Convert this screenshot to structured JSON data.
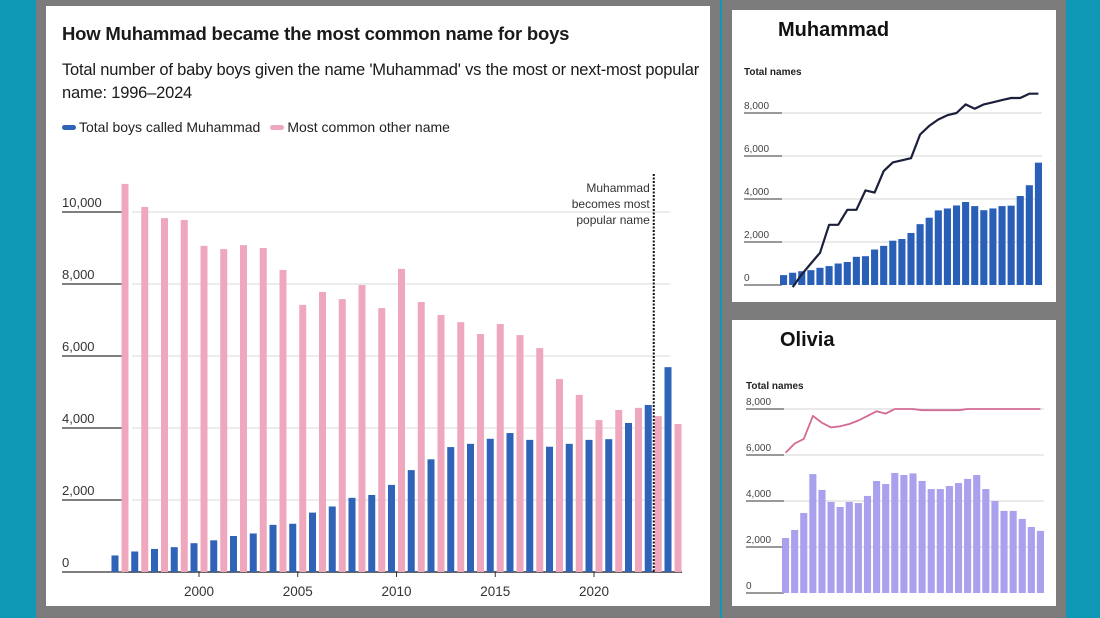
{
  "main": {
    "title": "How Muhammad became the most common name for boys",
    "subtitle": "Total number of baby boys given the name 'Muhammad' vs the most or next-most popular name: 1996–2024",
    "legend": [
      {
        "label": "Total boys called Muhammad",
        "color": "#2e63b8"
      },
      {
        "label": "Most common other name",
        "color": "#eea7bd"
      }
    ],
    "annotation": [
      "Muhammad",
      "becomes most",
      "popular name"
    ]
  },
  "small_muhammad": {
    "title": "Muhammad",
    "axis_label": "Total names"
  },
  "small_olivia": {
    "title": "Olivia",
    "axis_label": "Total names"
  },
  "chart_data": [
    {
      "type": "bar",
      "title": "How Muhammad became the most common name for boys",
      "xlabel": "",
      "ylabel": "",
      "x": [
        1996,
        1997,
        1998,
        1999,
        2000,
        2001,
        2002,
        2003,
        2004,
        2005,
        2006,
        2007,
        2008,
        2009,
        2010,
        2011,
        2012,
        2013,
        2014,
        2015,
        2016,
        2017,
        2018,
        2019,
        2020,
        2021,
        2022,
        2023,
        2024
      ],
      "x_ticks": [
        2000,
        2005,
        2010,
        2015,
        2020
      ],
      "x_tick_labels": [
        "2000",
        "2005",
        "2010",
        "2015",
        "2020"
      ],
      "ylim": [
        0,
        11000
      ],
      "y_ticks": [
        0,
        2000,
        4000,
        6000,
        8000,
        10000
      ],
      "y_tick_labels": [
        "0",
        "2,000",
        "4,000",
        "6,000",
        "8,000",
        "10,000"
      ],
      "grid": true,
      "legend_position": "top-left",
      "annotation_year": 2023,
      "series": [
        {
          "name": "Total boys called Muhammad",
          "color": "#2e63b8",
          "values": [
            460,
            570,
            640,
            690,
            800,
            880,
            1000,
            1070,
            1310,
            1340,
            1650,
            1820,
            2060,
            2140,
            2420,
            2830,
            3130,
            3470,
            3560,
            3700,
            3860,
            3670,
            3480,
            3560,
            3670,
            3690,
            4140,
            4640,
            5690
          ]
        },
        {
          "name": "Most common other name",
          "color": "#eea7bd",
          "values": [
            10780,
            10140,
            9830,
            9780,
            9060,
            8970,
            9080,
            9000,
            8390,
            7420,
            7780,
            7580,
            7970,
            7330,
            8420,
            7500,
            7140,
            6940,
            6610,
            6890,
            6580,
            6220,
            5360,
            4920,
            4220,
            4500,
            4560,
            4330,
            4110
          ]
        }
      ]
    },
    {
      "type": "bar",
      "title": "Muhammad",
      "ylabel": "Total names",
      "ylim": [
        0,
        9500
      ],
      "y_ticks": [
        0,
        2000,
        4000,
        6000,
        8000
      ],
      "y_tick_labels": [
        "0",
        "2,000",
        "4,000",
        "6,000",
        "8,000"
      ],
      "grid": true,
      "series": [
        {
          "name": "bars",
          "color": "#2a5fb8",
          "values": [
            460,
            570,
            640,
            690,
            800,
            880,
            1000,
            1070,
            1310,
            1340,
            1650,
            1820,
            2060,
            2140,
            2420,
            2830,
            3130,
            3470,
            3560,
            3700,
            3860,
            3670,
            3480,
            3560,
            3670,
            3690,
            4140,
            4640,
            5690
          ]
        },
        {
          "name": "line",
          "color": "#1b1f3b",
          "values": [
            null,
            -100,
            500,
            1000,
            1500,
            2800,
            2800,
            3500,
            3500,
            4400,
            4300,
            5300,
            5700,
            5800,
            5900,
            7000,
            7400,
            7700,
            7900,
            8000,
            8400,
            8200,
            8400,
            8500,
            8600,
            8700,
            8700,
            8900,
            8900
          ]
        }
      ]
    },
    {
      "type": "bar",
      "title": "Olivia",
      "ylabel": "Total names",
      "ylim": [
        0,
        8600
      ],
      "y_ticks": [
        0,
        2000,
        4000,
        6000,
        8000
      ],
      "y_tick_labels": [
        "0",
        "2,000",
        "4,000",
        "6,000",
        "8,000"
      ],
      "grid": true,
      "series": [
        {
          "name": "bars",
          "color": "#a9a0ee",
          "values": [
            2390,
            2740,
            3480,
            5170,
            4480,
            3960,
            3740,
            3960,
            3910,
            4220,
            4870,
            4740,
            5220,
            5130,
            5200,
            4870,
            4520,
            4520,
            4650,
            4780,
            4960,
            5130,
            4520,
            4000,
            3570,
            3570,
            3220,
            2870,
            2700
          ]
        },
        {
          "name": "line",
          "color": "#d26a94",
          "values": [
            6100,
            6500,
            6700,
            7700,
            7400,
            7200,
            7250,
            7350,
            7500,
            7700,
            7900,
            7800,
            8000,
            8000,
            8000,
            7950,
            7950,
            7950,
            7950,
            7950,
            8000,
            8000,
            8000,
            8000,
            8000,
            8000,
            8000,
            8000,
            8000
          ]
        }
      ]
    }
  ]
}
